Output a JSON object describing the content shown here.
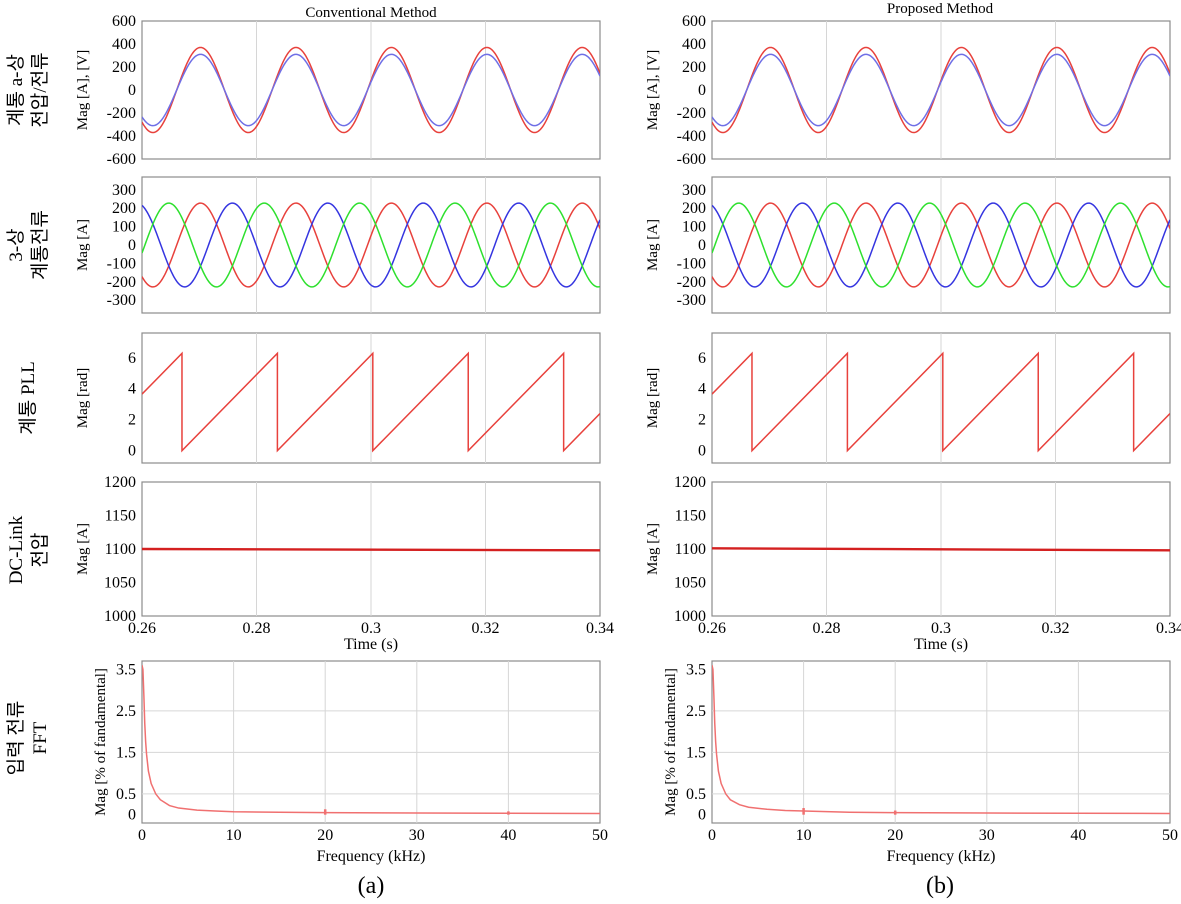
{
  "figure": {
    "panel_titles": [
      "Conventional Method",
      "Proposed Method"
    ],
    "panel_labels": [
      "(a)",
      "(b)"
    ],
    "row_labels": [
      [
        "계통 a-상",
        "전압/전류"
      ],
      [
        "3-상",
        "계통전류"
      ],
      [
        "계통 PLL"
      ],
      [
        "DC-Link",
        "전압"
      ],
      [
        "입력 전류",
        "FFT"
      ]
    ],
    "time_xlabel": "Time (s)",
    "freq_xlabel": "Frequency (kHz)"
  },
  "chart_data": [
    {
      "type": "line",
      "panel": "a",
      "row": 1,
      "title": "Conventional Method",
      "ylabel": "Mag [A], [V]",
      "xlim": [
        0.26,
        0.34
      ],
      "ylim": [
        -600,
        600
      ],
      "yticks": [
        600,
        400,
        200,
        0,
        -200,
        -400,
        -600
      ],
      "series": [
        {
          "name": "voltage",
          "color": "#e8413c",
          "waveform": "sine",
          "amplitude": 370,
          "frequency_hz": 60,
          "phase_deg": -131
        },
        {
          "name": "current",
          "color": "#6f6fe6",
          "waveform": "sine",
          "amplitude": 310,
          "frequency_hz": 60,
          "phase_deg": -131
        }
      ]
    },
    {
      "type": "line",
      "panel": "a",
      "row": 2,
      "ylabel": "Mag [A]",
      "xlim": [
        0.26,
        0.34
      ],
      "ylim": [
        -370,
        370
      ],
      "yticks": [
        300,
        200,
        100,
        0,
        -100,
        -200,
        -300
      ],
      "series": [
        {
          "name": "phase-a",
          "color": "#e8413c",
          "waveform": "sine",
          "amplitude": 228,
          "frequency_hz": 60,
          "phase_deg": -131
        },
        {
          "name": "phase-b",
          "color": "#3535e0",
          "waveform": "sine",
          "amplitude": 228,
          "frequency_hz": 60,
          "phase_deg": -251
        },
        {
          "name": "phase-c",
          "color": "#2ee02e",
          "waveform": "sine",
          "amplitude": 228,
          "frequency_hz": 60,
          "phase_deg": -11
        }
      ]
    },
    {
      "type": "line",
      "panel": "a",
      "row": 3,
      "ylabel": "Mag [rad]",
      "xlim": [
        0.26,
        0.34
      ],
      "ylim": [
        -0.8,
        7.6
      ],
      "yticks": [
        6,
        4,
        2,
        0
      ],
      "series": [
        {
          "name": "pll-angle",
          "color": "#e8413c",
          "waveform": "sawtooth",
          "max": 6.283,
          "frequency_hz": 60,
          "phase_at_xmin": 3.65
        }
      ]
    },
    {
      "type": "line",
      "panel": "a",
      "row": 4,
      "ylabel": "Mag [A]",
      "xlim": [
        0.26,
        0.34
      ],
      "ylim": [
        1000,
        1200
      ],
      "yticks": [
        1200,
        1150,
        1100,
        1050,
        1000
      ],
      "xticks": [
        "0.26",
        "0.28",
        "0.3",
        "0.32",
        "0.34"
      ],
      "xlabel": "Time (s)",
      "series": [
        {
          "name": "dc-link",
          "color": "#d42020",
          "x": [
            0.26,
            0.34
          ],
          "y": [
            1100,
            1098
          ]
        }
      ]
    },
    {
      "type": "line",
      "panel": "a",
      "row": 5,
      "ylabel": "Mag [% of fandamental]",
      "xlim": [
        0,
        50
      ],
      "ylim": [
        -0.2,
        3.7
      ],
      "yticks": [
        "3.5",
        "2.5",
        "1.5",
        "0.5",
        "0"
      ],
      "xticks": [
        "0",
        "10",
        "20",
        "30",
        "40",
        "50"
      ],
      "xlabel": "Frequency (kHz)",
      "series": [
        {
          "name": "fft",
          "color": "#f07070",
          "x": [
            0,
            0.1,
            0.2,
            0.3,
            0.4,
            0.5,
            0.7,
            1,
            1.5,
            2,
            3,
            4,
            6,
            8,
            10,
            15,
            20,
            30,
            40,
            50
          ],
          "y": [
            3.6,
            3.5,
            2.9,
            2.2,
            1.75,
            1.45,
            1.05,
            0.75,
            0.5,
            0.36,
            0.22,
            0.16,
            0.11,
            0.09,
            0.07,
            0.06,
            0.05,
            0.04,
            0.035,
            0.03
          ],
          "spikes": [
            {
              "x": 20,
              "y": 0.13
            },
            {
              "x": 40,
              "y": 0.08
            }
          ]
        }
      ]
    },
    {
      "type": "line",
      "panel": "b",
      "row": 1,
      "title": "Proposed Method",
      "ylabel": "Mag [A], [V]",
      "xlim": [
        0.26,
        0.34
      ],
      "ylim": [
        -600,
        600
      ],
      "yticks": [
        600,
        400,
        200,
        0,
        -200,
        -400,
        -600
      ],
      "series": [
        {
          "name": "voltage",
          "color": "#e8413c",
          "waveform": "sine",
          "amplitude": 370,
          "frequency_hz": 60,
          "phase_deg": -131
        },
        {
          "name": "current",
          "color": "#6f6fe6",
          "waveform": "sine",
          "amplitude": 310,
          "frequency_hz": 60,
          "phase_deg": -131
        }
      ]
    },
    {
      "type": "line",
      "panel": "b",
      "row": 2,
      "ylabel": "Mag [A]",
      "xlim": [
        0.26,
        0.34
      ],
      "ylim": [
        -370,
        370
      ],
      "yticks": [
        300,
        200,
        100,
        0,
        -100,
        -200,
        -300
      ],
      "series": [
        {
          "name": "phase-a",
          "color": "#e8413c",
          "waveform": "sine",
          "amplitude": 228,
          "frequency_hz": 60,
          "phase_deg": -131
        },
        {
          "name": "phase-b",
          "color": "#3535e0",
          "waveform": "sine",
          "amplitude": 228,
          "frequency_hz": 60,
          "phase_deg": -251
        },
        {
          "name": "phase-c",
          "color": "#2ee02e",
          "waveform": "sine",
          "amplitude": 228,
          "frequency_hz": 60,
          "phase_deg": -11
        }
      ]
    },
    {
      "type": "line",
      "panel": "b",
      "row": 3,
      "ylabel": "Mag [rad]",
      "xlim": [
        0.26,
        0.34
      ],
      "ylim": [
        -0.8,
        7.6
      ],
      "yticks": [
        6,
        4,
        2,
        0
      ],
      "series": [
        {
          "name": "pll-angle",
          "color": "#e8413c",
          "waveform": "sawtooth",
          "max": 6.283,
          "frequency_hz": 60,
          "phase_at_xmin": 3.65
        }
      ]
    },
    {
      "type": "line",
      "panel": "b",
      "row": 4,
      "ylabel": "Mag [A]",
      "xlim": [
        0.26,
        0.34
      ],
      "ylim": [
        1000,
        1200
      ],
      "yticks": [
        1200,
        1150,
        1100,
        1050,
        1000
      ],
      "xticks": [
        "0.26",
        "0.28",
        "0.3",
        "0.32",
        "0.34"
      ],
      "xlabel": "Time (s)",
      "series": [
        {
          "name": "dc-link",
          "color": "#d42020",
          "x": [
            0.26,
            0.34
          ],
          "y": [
            1101,
            1098
          ]
        }
      ]
    },
    {
      "type": "line",
      "panel": "b",
      "row": 5,
      "ylabel": "Mag [% of fandamental]",
      "xlim": [
        0,
        50
      ],
      "ylim": [
        -0.2,
        3.7
      ],
      "yticks": [
        "3.5",
        "2.5",
        "1.5",
        "0.5",
        "0"
      ],
      "xticks": [
        "0",
        "10",
        "20",
        "30",
        "40",
        "50"
      ],
      "xlabel": "Frequency (kHz)",
      "series": [
        {
          "name": "fft",
          "color": "#f07070",
          "x": [
            0,
            0.1,
            0.2,
            0.3,
            0.4,
            0.5,
            0.7,
            1,
            1.5,
            2,
            3,
            4,
            6,
            8,
            10,
            15,
            20,
            30,
            40,
            50
          ],
          "y": [
            3.6,
            3.5,
            2.9,
            2.2,
            1.75,
            1.45,
            1.05,
            0.75,
            0.5,
            0.36,
            0.24,
            0.18,
            0.13,
            0.1,
            0.09,
            0.06,
            0.05,
            0.04,
            0.035,
            0.03
          ],
          "spikes": [
            {
              "x": 10,
              "y": 0.16
            },
            {
              "x": 20,
              "y": 0.1
            }
          ]
        }
      ]
    }
  ]
}
